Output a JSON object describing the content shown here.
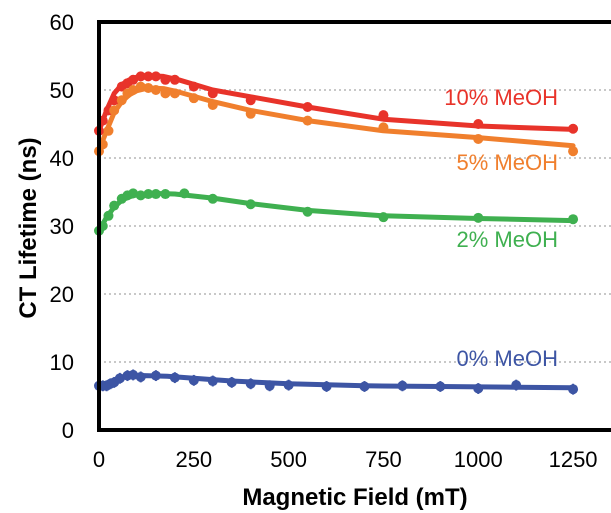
{
  "chart_data": {
    "type": "scatter",
    "title": "",
    "xlabel": "Magnetic Field (mT)",
    "ylabel": "CT Lifetime (ns)",
    "xlim": [
      0,
      1350
    ],
    "ylim": [
      0,
      60
    ],
    "x_ticks": [
      "0",
      "250",
      "500",
      "750",
      "1000",
      "1250"
    ],
    "y_ticks": [
      "0",
      "10",
      "20",
      "30",
      "40",
      "50",
      "60"
    ],
    "grid": "horizontal dotted",
    "series": [
      {
        "name": "10% MeOH",
        "color": "#e8332a",
        "points": [
          [
            0,
            44
          ],
          [
            10,
            45.5
          ],
          [
            25,
            47
          ],
          [
            40,
            48.5
          ],
          [
            60,
            50.5
          ],
          [
            75,
            51
          ],
          [
            90,
            51.5
          ],
          [
            110,
            52
          ],
          [
            130,
            52
          ],
          [
            150,
            52
          ],
          [
            175,
            51.5
          ],
          [
            200,
            51.5
          ],
          [
            250,
            50.5
          ],
          [
            300,
            49.5
          ],
          [
            400,
            48.5
          ],
          [
            550,
            47.5
          ],
          [
            750,
            46.3
          ],
          [
            1000,
            45
          ],
          [
            1250,
            44.3
          ]
        ],
        "fit": [
          [
            0,
            44
          ],
          [
            20,
            47
          ],
          [
            40,
            49.5
          ],
          [
            60,
            50.8
          ],
          [
            80,
            51.5
          ],
          [
            100,
            51.9
          ],
          [
            130,
            52.1
          ],
          [
            170,
            52
          ],
          [
            210,
            51.5
          ],
          [
            300,
            50
          ],
          [
            400,
            49
          ],
          [
            550,
            47.5
          ],
          [
            750,
            45.7
          ],
          [
            1000,
            44.7
          ],
          [
            1250,
            44.2
          ]
        ]
      },
      {
        "name": "5% MeOH",
        "color": "#f07f2d",
        "points": [
          [
            0,
            41
          ],
          [
            10,
            42
          ],
          [
            25,
            44
          ],
          [
            40,
            47
          ],
          [
            60,
            48.5
          ],
          [
            75,
            49.5
          ],
          [
            90,
            50
          ],
          [
            110,
            50.5
          ],
          [
            130,
            50.3
          ],
          [
            150,
            50
          ],
          [
            175,
            49.5
          ],
          [
            200,
            49.5
          ],
          [
            250,
            48.8
          ],
          [
            300,
            47.8
          ],
          [
            400,
            46.5
          ],
          [
            550,
            45.5
          ],
          [
            750,
            44.5
          ],
          [
            1000,
            42.8
          ],
          [
            1250,
            41
          ]
        ],
        "fit": [
          [
            0,
            41.2
          ],
          [
            20,
            44
          ],
          [
            40,
            46.7
          ],
          [
            60,
            48.3
          ],
          [
            80,
            49.3
          ],
          [
            100,
            49.9
          ],
          [
            130,
            50.3
          ],
          [
            170,
            50.2
          ],
          [
            210,
            49.7
          ],
          [
            300,
            48.3
          ],
          [
            400,
            47
          ],
          [
            550,
            45.5
          ],
          [
            750,
            44
          ],
          [
            1000,
            43
          ],
          [
            1250,
            41.8
          ]
        ]
      },
      {
        "name": "2% MeOH",
        "color": "#3fb050",
        "points": [
          [
            0,
            29.3
          ],
          [
            10,
            30
          ],
          [
            25,
            31.5
          ],
          [
            40,
            33
          ],
          [
            60,
            34
          ],
          [
            75,
            34.5
          ],
          [
            90,
            34.8
          ],
          [
            110,
            34.5
          ],
          [
            130,
            34.7
          ],
          [
            150,
            34.7
          ],
          [
            175,
            34.7
          ],
          [
            225,
            34.8
          ],
          [
            300,
            34
          ],
          [
            400,
            33.2
          ],
          [
            550,
            32.1
          ],
          [
            750,
            31.3
          ],
          [
            1000,
            31.2
          ],
          [
            1250,
            31
          ]
        ],
        "fit": [
          [
            0,
            29.3
          ],
          [
            20,
            31.3
          ],
          [
            40,
            32.8
          ],
          [
            60,
            33.8
          ],
          [
            80,
            34.3
          ],
          [
            100,
            34.6
          ],
          [
            140,
            34.8
          ],
          [
            200,
            34.7
          ],
          [
            300,
            34.1
          ],
          [
            400,
            33.3
          ],
          [
            550,
            32.3
          ],
          [
            750,
            31.5
          ],
          [
            1000,
            31.1
          ],
          [
            1250,
            30.8
          ]
        ]
      },
      {
        "name": "0% MeOH",
        "color": "#3d55a4",
        "points": [
          [
            0,
            6.5
          ],
          [
            10,
            6.5
          ],
          [
            20,
            6.5
          ],
          [
            30,
            6.8
          ],
          [
            40,
            7
          ],
          [
            55,
            7.6
          ],
          [
            75,
            8
          ],
          [
            90,
            8.1
          ],
          [
            110,
            7.8
          ],
          [
            150,
            8
          ],
          [
            200,
            7.7
          ],
          [
            250,
            7.3
          ],
          [
            300,
            7.2
          ],
          [
            350,
            7
          ],
          [
            400,
            6.8
          ],
          [
            450,
            6.5
          ],
          [
            500,
            6.6
          ],
          [
            600,
            6.4
          ],
          [
            700,
            6.4
          ],
          [
            800,
            6.5
          ],
          [
            900,
            6.4
          ],
          [
            1000,
            6.1
          ],
          [
            1100,
            6.6
          ],
          [
            1250,
            6
          ]
        ],
        "error": 0.8,
        "fit": [
          [
            0,
            6.6
          ],
          [
            20,
            6.9
          ],
          [
            40,
            7.3
          ],
          [
            60,
            7.7
          ],
          [
            80,
            7.9
          ],
          [
            120,
            8
          ],
          [
            180,
            7.9
          ],
          [
            250,
            7.6
          ],
          [
            350,
            7.2
          ],
          [
            500,
            6.8
          ],
          [
            700,
            6.5
          ],
          [
            900,
            6.4
          ],
          [
            1100,
            6.3
          ],
          [
            1250,
            6.2
          ]
        ]
      }
    ]
  }
}
